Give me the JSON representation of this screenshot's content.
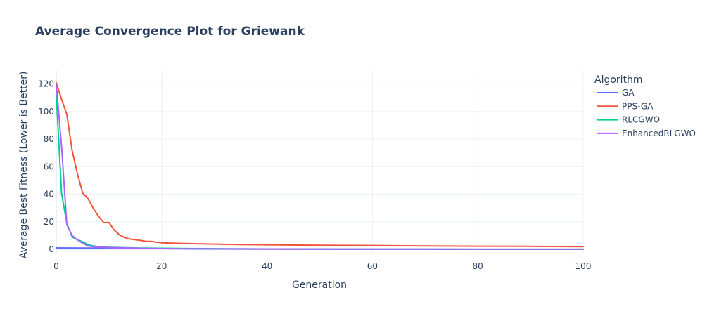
{
  "chart_data": {
    "type": "line",
    "title": "Average Convergence Plot for Griewank",
    "xlabel": "Generation",
    "ylabel": "Average Best Fitness (Lower is Better)",
    "xlim": [
      0,
      100
    ],
    "ylim": [
      -3,
      130
    ],
    "xticks": [
      0,
      20,
      40,
      60,
      80,
      100
    ],
    "yticks": [
      0,
      20,
      40,
      60,
      80,
      100,
      120
    ],
    "grid": true,
    "legend_title": "Algorithm",
    "legend_position": "right",
    "series": [
      {
        "name": "GA",
        "color": "#636efa",
        "x": [
          0,
          10,
          20,
          30,
          40,
          60,
          80,
          100
        ],
        "y": [
          1.1,
          0.9,
          0.6,
          0.3,
          0.2,
          0.1,
          0.08,
          0.05
        ]
      },
      {
        "name": "PPS-GA",
        "color": "#ef553b",
        "x": [
          0,
          1,
          2,
          3,
          4,
          5,
          6,
          7,
          8,
          9,
          10,
          11,
          12,
          13,
          14,
          15,
          16,
          17,
          18,
          19,
          20,
          22,
          25,
          30,
          35,
          40,
          50,
          60,
          70,
          80,
          90,
          100
        ],
        "y": [
          121,
          109,
          98,
          72,
          55,
          41,
          37,
          30,
          24,
          19.5,
          19.5,
          14,
          10.5,
          8.5,
          7.5,
          7,
          6.5,
          5.8,
          5.8,
          5.2,
          4.8,
          4.5,
          4.2,
          3.8,
          3.5,
          3.3,
          3.0,
          2.8,
          2.5,
          2.3,
          2.2,
          2.0
        ]
      },
      {
        "name": "RLCGWO",
        "color": "#00cc96",
        "x": [
          0,
          1,
          2,
          3,
          4,
          5,
          6,
          7,
          8,
          10,
          15,
          20,
          30,
          40,
          60,
          80,
          100
        ],
        "y": [
          112,
          41,
          19,
          9,
          7,
          5.5,
          3.5,
          2.5,
          2,
          1.5,
          1,
          0.8,
          0.5,
          0.3,
          0.2,
          0.15,
          0.1
        ]
      },
      {
        "name": "EnhancedRLGWO",
        "color": "#ab63fa",
        "x": [
          0,
          1,
          2,
          3,
          4,
          5,
          6,
          7,
          8,
          10,
          15,
          20,
          30,
          40,
          60,
          80,
          100
        ],
        "y": [
          120,
          75,
          18,
          10,
          7,
          4.5,
          2.5,
          2,
          1.8,
          1.3,
          0.9,
          0.6,
          0.4,
          0.3,
          0.2,
          0.15,
          0.1
        ]
      }
    ]
  }
}
